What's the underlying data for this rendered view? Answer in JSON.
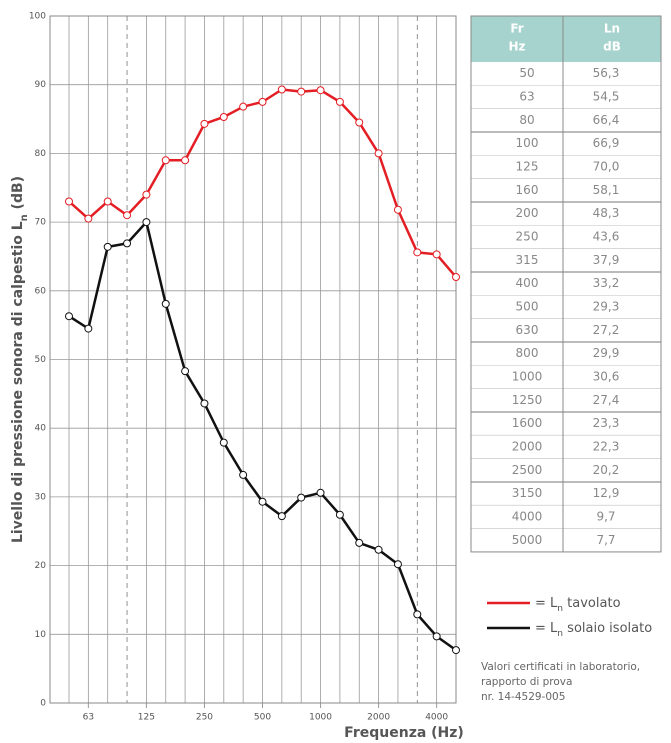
{
  "chart_data": {
    "type": "line",
    "ylabel": "Livello di pressione sonora di calpestio Ln (dB)",
    "xlabel": "Frequenza (Hz)",
    "categories": [
      null,
      63,
      null,
      null,
      125,
      null,
      null,
      250,
      null,
      null,
      500,
      null,
      null,
      1000,
      null,
      null,
      2000,
      null,
      null,
      4000,
      null
    ],
    "series": [
      {
        "name": "= Ln tavolato",
        "color": "#e31e24",
        "values": [
          73,
          70.5,
          73,
          71,
          74,
          79,
          79,
          84.3,
          85.3,
          86.8,
          87.5,
          89.3,
          89,
          89.2,
          87.5,
          84.5,
          80,
          71.8,
          65.6,
          65.3,
          62
        ]
      },
      {
        "name": "= Ln solaio isolato",
        "color": "#111111",
        "values": [
          56.3,
          54.5,
          66.4,
          66.9,
          70.0,
          58.1,
          48.3,
          43.6,
          37.9,
          33.2,
          29.3,
          27.2,
          29.9,
          30.6,
          27.4,
          23.3,
          22.3,
          20.2,
          12.9,
          9.7,
          7.7
        ]
      }
    ],
    "ylim": [
      0,
      100
    ],
    "yticks": [
      0,
      10,
      20,
      30,
      40,
      50,
      60,
      70,
      80,
      90,
      100
    ],
    "grid": true
  },
  "table": {
    "header": [
      [
        "Fr",
        "Hz"
      ],
      [
        "Ln",
        "dB"
      ]
    ],
    "rows": [
      [
        "50",
        "56,3"
      ],
      [
        "63",
        "54,5"
      ],
      [
        "80",
        "66,4"
      ],
      [
        "100",
        "66,9"
      ],
      [
        "125",
        "70,0"
      ],
      [
        "160",
        "58,1"
      ],
      [
        "200",
        "48,3"
      ],
      [
        "250",
        "43,6"
      ],
      [
        "315",
        "37,9"
      ],
      [
        "400",
        "33,2"
      ],
      [
        "500",
        "29,3"
      ],
      [
        "630",
        "27,2"
      ],
      [
        "800",
        "29,9"
      ],
      [
        "1000",
        "30,6"
      ],
      [
        "1250",
        "27,4"
      ],
      [
        "1600",
        "23,3"
      ],
      [
        "2000",
        "22,3"
      ],
      [
        "2500",
        "20,2"
      ],
      [
        "3150",
        "12,9"
      ],
      [
        "4000",
        "9,7"
      ],
      [
        "5000",
        "7,7"
      ]
    ]
  },
  "note": [
    "Valori certificati in laboratorio,",
    "rapporto di prova",
    "nr. 14-4529-005"
  ]
}
